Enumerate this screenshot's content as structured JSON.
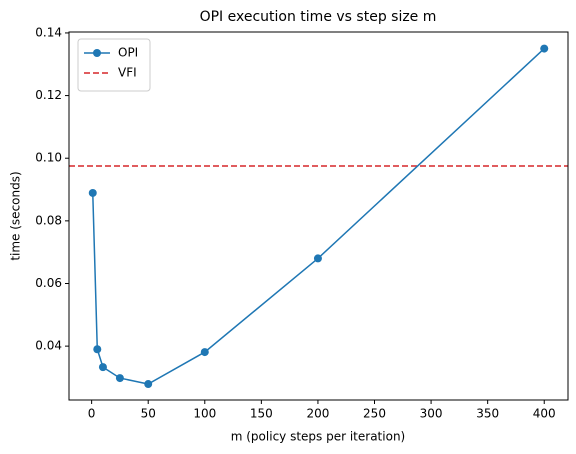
{
  "chart_data": {
    "type": "line",
    "title": "OPI execution time vs step size m",
    "xlabel": "m (policy steps per iteration)",
    "ylabel": "time (seconds)",
    "x": [
      1,
      5,
      10,
      25,
      50,
      100,
      200,
      400
    ],
    "series": [
      {
        "name": "OPI",
        "color": "#1f77b4",
        "marker": "o",
        "values": [
          0.0889,
          0.039,
          0.0333,
          0.0298,
          0.0279,
          0.0381,
          0.068,
          0.135
        ]
      }
    ],
    "hlines": [
      {
        "name": "VFI",
        "color": "#d62728",
        "style": "dashed",
        "value": 0.0975
      }
    ],
    "xlim": [
      -20,
      421
    ],
    "xticks": [
      0,
      50,
      100,
      150,
      200,
      250,
      300,
      350,
      400
    ],
    "ylim": [
      0.0228,
      0.1403
    ],
    "yticks": [
      {
        "value": 0.04,
        "label": "0.04"
      },
      {
        "value": 0.06,
        "label": "0.06"
      },
      {
        "value": 0.08,
        "label": "0.08"
      },
      {
        "value": 0.1,
        "label": "0.10"
      },
      {
        "value": 0.12,
        "label": "0.12"
      },
      {
        "value": 0.14,
        "label": "0.14"
      }
    ],
    "legend": "upper left",
    "grid": false
  }
}
